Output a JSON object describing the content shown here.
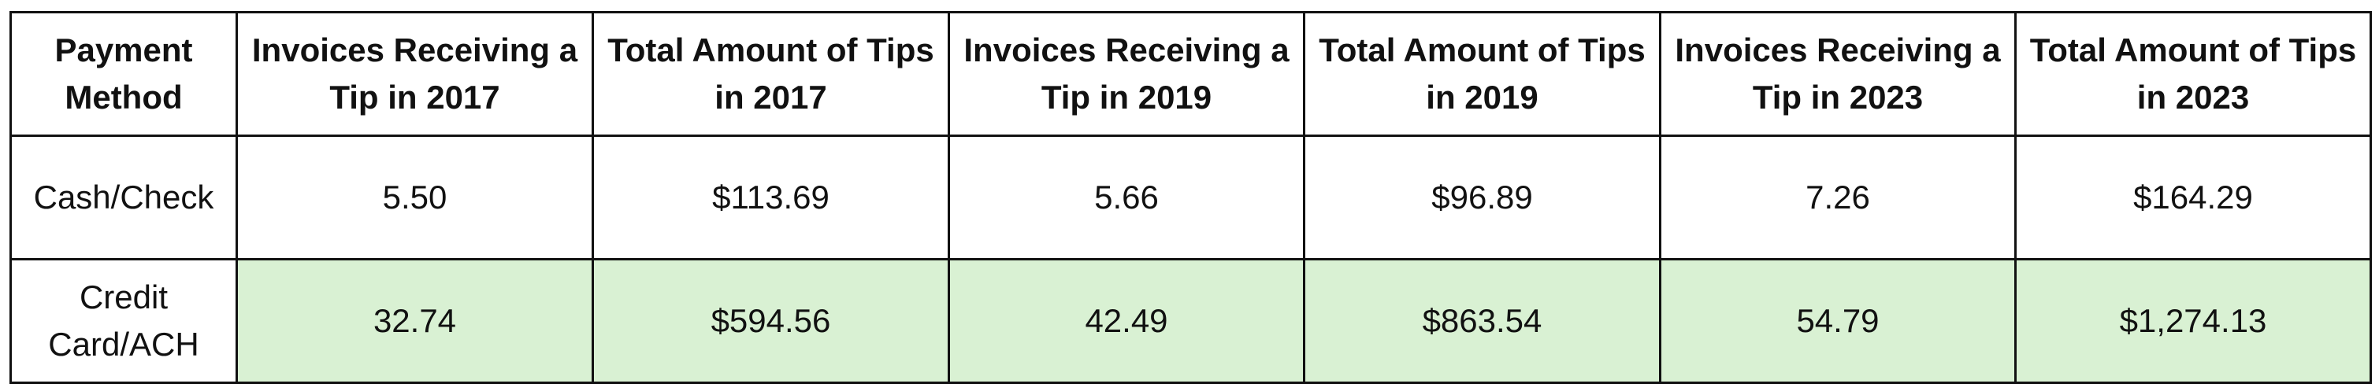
{
  "table": {
    "headers": [
      "Payment Method",
      "Invoices Receiving a Tip in 2017",
      "Total Amount of Tips in 2017",
      "Invoices Receiving a Tip in 2019",
      "Total Amount of Tips in 2019",
      "Invoices Receiving a Tip in 2023",
      "Total Amount of Tips in 2023"
    ],
    "rows": [
      {
        "method": "Cash/Check",
        "values": [
          "5.50",
          "$113.69",
          "5.66",
          "$96.89",
          "7.26",
          "$164.29"
        ]
      },
      {
        "method": "Credit Card/ACH",
        "values": [
          "32.74",
          "$594.56",
          "42.49",
          "$863.54",
          "54.79",
          "$1,274.13"
        ]
      }
    ]
  },
  "colors": {
    "highlight_row_bg": "#d9f1d3",
    "border": "#111111"
  }
}
